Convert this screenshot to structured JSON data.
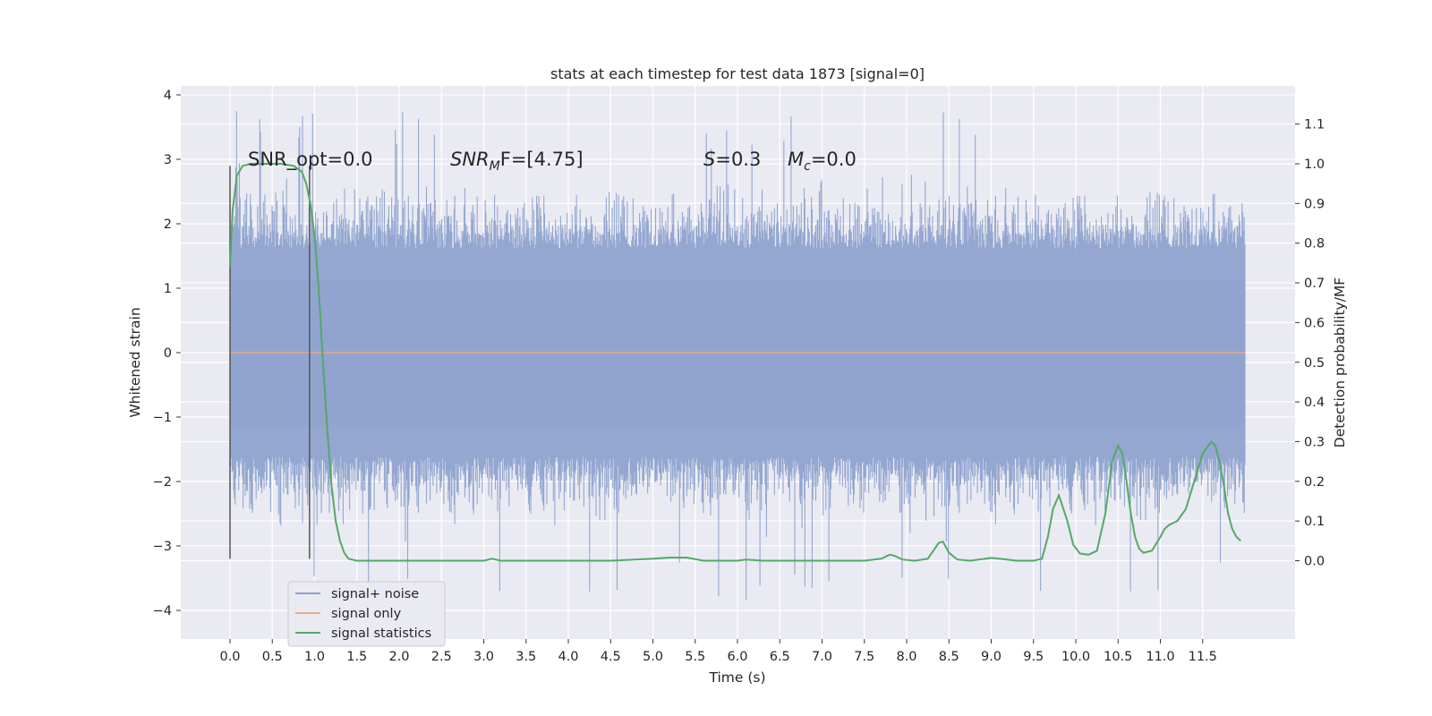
{
  "chart_data": {
    "type": "line",
    "title": "stats at each timestep for test data 1873 [signal=0]",
    "xlabel": "Time (s)",
    "ylabel_left": "Whitened strain",
    "ylabel_right": "Detection probability/MF",
    "x_ticks": [
      "0.0",
      "0.5",
      "1.0",
      "1.5",
      "2.0",
      "2.5",
      "3.0",
      "3.5",
      "4.0",
      "4.5",
      "5.0",
      "5.5",
      "6.0",
      "6.5",
      "7.0",
      "7.5",
      "8.0",
      "8.5",
      "9.0",
      "9.5",
      "10.0",
      "10.5",
      "11.0",
      "11.5"
    ],
    "y_left_ticks": [
      "4",
      "3",
      "2",
      "1",
      "0",
      "−1",
      "−2",
      "−3",
      "−4"
    ],
    "y_right_ticks": [
      "1.1",
      "1.0",
      "0.9",
      "0.8",
      "0.7",
      "0.6",
      "0.5",
      "0.4",
      "0.3",
      "0.2",
      "0.1",
      "0.0"
    ],
    "xlim": [
      -0.58,
      12.6
    ],
    "ylim_left": [
      -4.45,
      4.1
    ],
    "ylim_right": [
      -0.2,
      1.2
    ],
    "grid": true,
    "legend_position": "lower-left",
    "annotations": {
      "snr_opt": "SNR_opt=0.0",
      "snr_mf_sym": "SNR",
      "snr_mf_sub": "M",
      "snr_mf_rest": "F=[4.75]",
      "s_sym": "S",
      "s_rest": "=0.3",
      "mc_sym": "M",
      "mc_sub": "c",
      "mc_rest": "=0.0"
    },
    "vertical_markers_x": [
      0.0,
      0.94
    ],
    "series": [
      {
        "name": "signal+ noise",
        "color": "#8fa3cf",
        "description": "whitened noise, approx. Gaussian, dense",
        "x_range": [
          0.0,
          12.0
        ],
        "typical_envelope": [
          -1.9,
          1.9
        ],
        "extremes": [
          -3.85,
          3.75
        ]
      },
      {
        "name": "signal only",
        "color": "#dd8452",
        "x": [
          0.0,
          12.0
        ],
        "y": [
          0.0,
          0.0
        ]
      },
      {
        "name": "signal statistics",
        "color": "#55a868",
        "axis": "right",
        "x": [
          0.0,
          0.03,
          0.08,
          0.15,
          0.25,
          0.4,
          0.6,
          0.75,
          0.85,
          0.9,
          0.95,
          1.0,
          1.05,
          1.1,
          1.15,
          1.2,
          1.25,
          1.3,
          1.35,
          1.4,
          1.5,
          1.7,
          2.0,
          2.5,
          3.0,
          3.1,
          3.2,
          3.5,
          4.0,
          4.5,
          5.0,
          5.2,
          5.4,
          5.6,
          6.0,
          6.1,
          6.3,
          7.0,
          7.5,
          7.7,
          7.8,
          7.85,
          7.95,
          8.1,
          8.25,
          8.3,
          8.38,
          8.43,
          8.5,
          8.6,
          8.75,
          9.0,
          9.1,
          9.3,
          9.5,
          9.6,
          9.67,
          9.73,
          9.8,
          9.9,
          9.97,
          10.05,
          10.15,
          10.25,
          10.35,
          10.43,
          10.5,
          10.55,
          10.6,
          10.65,
          10.7,
          10.75,
          10.8,
          10.9,
          11.0,
          11.05,
          11.1,
          11.2,
          11.3,
          11.4,
          11.5,
          11.6,
          11.65,
          11.7,
          11.75,
          11.8,
          11.85,
          11.9,
          11.95
        ],
        "y": [
          0.74,
          0.88,
          0.97,
          0.995,
          1.0,
          1.0,
          1.0,
          0.995,
          0.98,
          0.95,
          0.9,
          0.82,
          0.68,
          0.5,
          0.33,
          0.19,
          0.1,
          0.05,
          0.02,
          0.005,
          0.0,
          0.0,
          0.0,
          0.0,
          0.0,
          0.005,
          0.0,
          0.0,
          0.0,
          0.0,
          0.005,
          0.008,
          0.008,
          0.0,
          0.0,
          0.003,
          0.0,
          0.0,
          0.0,
          0.005,
          0.015,
          0.013,
          0.003,
          0.0,
          0.005,
          0.02,
          0.045,
          0.048,
          0.02,
          0.003,
          0.0,
          0.007,
          0.005,
          0.0,
          0.0,
          0.005,
          0.06,
          0.13,
          0.165,
          0.1,
          0.04,
          0.018,
          0.015,
          0.025,
          0.12,
          0.25,
          0.29,
          0.27,
          0.2,
          0.12,
          0.06,
          0.03,
          0.02,
          0.025,
          0.06,
          0.08,
          0.09,
          0.1,
          0.13,
          0.2,
          0.27,
          0.3,
          0.29,
          0.25,
          0.19,
          0.12,
          0.08,
          0.06,
          0.05
        ]
      }
    ]
  }
}
